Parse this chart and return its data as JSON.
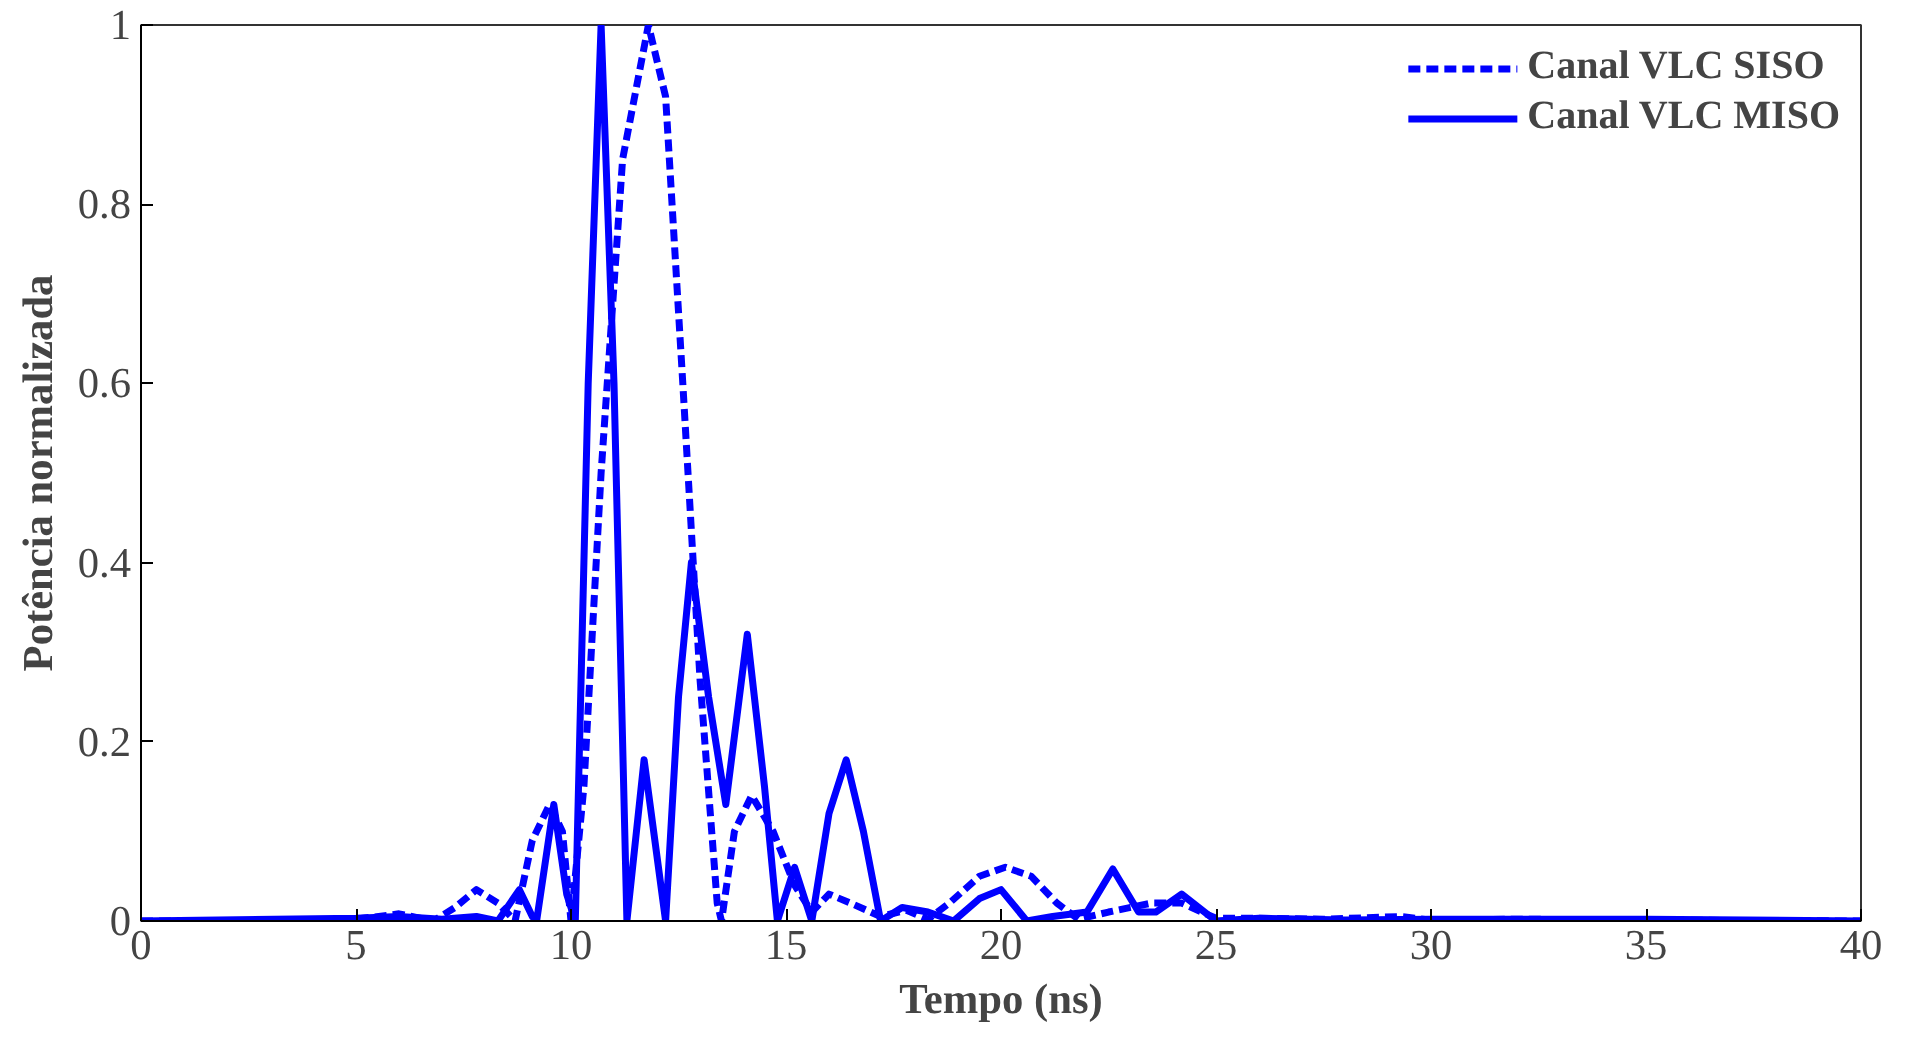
{
  "chart_data": {
    "type": "line",
    "xlabel": "Tempo (ns)",
    "ylabel": "Potência normalizada",
    "xlim": [
      0,
      40
    ],
    "ylim": [
      0,
      1
    ],
    "xticks": [
      0,
      5,
      10,
      15,
      20,
      25,
      30,
      35,
      40
    ],
    "yticks": [
      0,
      0.2,
      0.4,
      0.6,
      0.8,
      1
    ],
    "grid": false,
    "legend": "top right",
    "marker": "none",
    "series": [
      {
        "name": "Canal VLC SISO",
        "color": "#0000ff",
        "line_style": "dashed",
        "x": [
          0,
          3,
          5,
          6,
          6.8,
          7.3,
          7.8,
          8.3,
          8.7,
          9.1,
          9.5,
          9.8,
          10.0,
          10.3,
          10.7,
          11.2,
          11.8,
          12.2,
          12.6,
          13.0,
          13.4,
          13.5,
          13.8,
          14.2,
          14.7,
          15.2,
          15.6,
          16.0,
          16.5,
          17.2,
          17.8,
          18.3,
          18.8,
          19.5,
          20.1,
          20.7,
          21.3,
          21.8,
          22.5,
          23.5,
          24.2,
          25,
          26,
          27.5,
          29.3,
          30,
          32,
          35,
          40
        ],
        "values": [
          0,
          0,
          0.002,
          0.008,
          0,
          0.015,
          0.035,
          0.02,
          0,
          0.09,
          0.13,
          0.1,
          0,
          0.15,
          0.5,
          0.85,
          1.0,
          0.92,
          0.6,
          0.27,
          0.02,
          0,
          0.1,
          0.14,
          0.1,
          0.04,
          0.01,
          0.03,
          0.02,
          0.005,
          0.012,
          0.002,
          0.02,
          0.05,
          0.06,
          0.05,
          0.02,
          0.002,
          0.01,
          0.02,
          0.02,
          0.003,
          0.003,
          0.002,
          0.005,
          0.001,
          0.002,
          0.001,
          0
        ]
      },
      {
        "name": "Canal VLC MISO",
        "color": "#0000ff",
        "line_style": "solid",
        "x": [
          0,
          5,
          6,
          7,
          7.8,
          8.3,
          8.8,
          9.1,
          9.2,
          9.6,
          9.9,
          10.1,
          10.4,
          10.7,
          11.0,
          11.3,
          11.7,
          12.2,
          12.5,
          12.8,
          13.2,
          13.6,
          14.1,
          14.5,
          14.8,
          15.2,
          15.6,
          16.0,
          16.4,
          16.8,
          17.2,
          17.7,
          18.3,
          18.9,
          19.5,
          20.0,
          20.6,
          21.2,
          22.0,
          22.6,
          23.2,
          23.6,
          24.2,
          25,
          26,
          28,
          30,
          35,
          40
        ],
        "values": [
          0,
          0.003,
          0.005,
          0.002,
          0.005,
          0,
          0.035,
          0.005,
          0,
          0.13,
          0.03,
          0,
          0.6,
          1.0,
          0.6,
          0,
          0.18,
          0,
          0.25,
          0.4,
          0.25,
          0.13,
          0.32,
          0.15,
          0,
          0.06,
          0,
          0.12,
          0.18,
          0.1,
          0,
          0.015,
          0.01,
          0,
          0.025,
          0.035,
          0,
          0.005,
          0.01,
          0.058,
          0.01,
          0.01,
          0.03,
          0,
          0.003,
          0.001,
          0.002,
          0.002,
          0
        ]
      }
    ]
  }
}
